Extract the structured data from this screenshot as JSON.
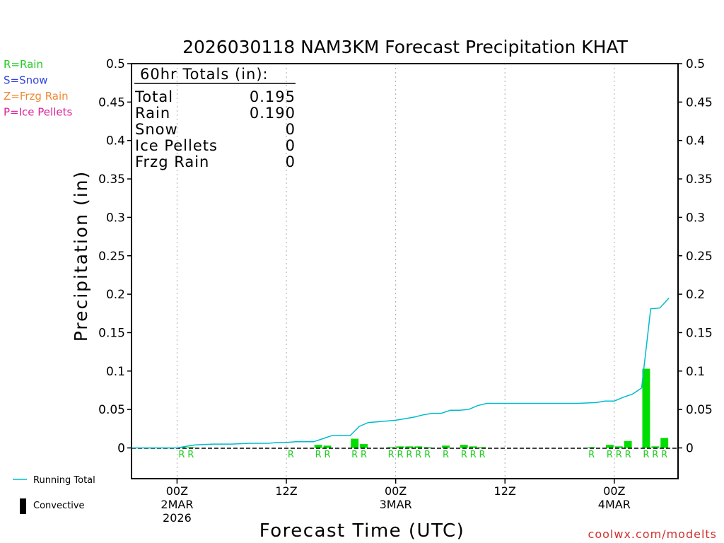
{
  "chart_data": {
    "type": "bar",
    "title": "2026030118 NAM3KM Forecast Precipitation KHAT",
    "xlabel": "Forecast Time (UTC)",
    "ylabel": "Precipitation (in)",
    "ylim": [
      -0.04,
      0.5
    ],
    "xlim_hours": [
      -5,
      55
    ],
    "y_ticks": [
      0,
      0.05,
      0.1,
      0.15,
      0.2,
      0.25,
      0.3,
      0.35,
      0.4,
      0.45,
      0.5
    ],
    "y_tick_labels": [
      "0",
      "0.05",
      "0.1",
      "0.15",
      "0.2",
      "0.25",
      "0.3",
      "0.35",
      "0.4",
      "0.45",
      "0.5"
    ],
    "x_ticks": [
      {
        "hour": 0,
        "lines": [
          "00Z",
          "2MAR",
          "2026"
        ]
      },
      {
        "hour": 12,
        "lines": [
          "12Z"
        ]
      },
      {
        "hour": 24,
        "lines": [
          "00Z",
          "3MAR"
        ]
      },
      {
        "hour": 36,
        "lines": [
          "12Z"
        ]
      },
      {
        "hour": 48,
        "lines": [
          "00Z",
          "4MAR"
        ]
      }
    ],
    "grid": "vertical dotted at tick hours",
    "totals": {
      "header": "60hr Totals (in):",
      "rows": [
        {
          "label": "Total",
          "value": "0.195"
        },
        {
          "label": "Rain",
          "value": "0.190"
        },
        {
          "label": "Snow",
          "value": "0"
        },
        {
          "label": "Ice Pellets",
          "value": "0"
        },
        {
          "label": "Frzg Rain",
          "value": "0"
        }
      ]
    },
    "type_legend": [
      {
        "text": "R=Rain",
        "color": "#22cc22"
      },
      {
        "text": "S=Snow",
        "color": "#3344dd"
      },
      {
        "text": "Z=Frzg Rain",
        "color": "#ee8833"
      },
      {
        "text": "P=Ice Pellets",
        "color": "#dd2299"
      }
    ],
    "series_legend": [
      {
        "name": "Running Total",
        "symbol": "line",
        "color": "#00bbcc"
      },
      {
        "name": "Convective",
        "symbol": "bar",
        "color": "#000000"
      }
    ],
    "bar_color": "#00dd00",
    "running_total_color": "#00bbcc",
    "ptype_color": "#22cc22",
    "series": [
      {
        "name": "Hourly Precipitation",
        "points": [
          {
            "hour": 1,
            "value": 0.001
          },
          {
            "hour": 2,
            "value": 0.001
          },
          {
            "hour": 16,
            "value": 0.004
          },
          {
            "hour": 17,
            "value": 0.003
          },
          {
            "hour": 20,
            "value": 0.012
          },
          {
            "hour": 21,
            "value": 0.005
          },
          {
            "hour": 24,
            "value": 0.001
          },
          {
            "hour": 25,
            "value": 0.002
          },
          {
            "hour": 26,
            "value": 0.002
          },
          {
            "hour": 27,
            "value": 0.002
          },
          {
            "hour": 28,
            "value": 0.001
          },
          {
            "hour": 30,
            "value": 0.003
          },
          {
            "hour": 32,
            "value": 0.004
          },
          {
            "hour": 33,
            "value": 0.002
          },
          {
            "hour": 34,
            "value": 0.001
          },
          {
            "hour": 46,
            "value": 0.001
          },
          {
            "hour": 48,
            "value": 0.004
          },
          {
            "hour": 49,
            "value": 0.002
          },
          {
            "hour": 50,
            "value": 0.009
          },
          {
            "hour": 52,
            "value": 0.103
          },
          {
            "hour": 53,
            "value": 0.002
          },
          {
            "hour": 54,
            "value": 0.013
          }
        ]
      },
      {
        "name": "Running Total",
        "points": [
          {
            "hour": -5,
            "value": 0
          },
          {
            "hour": 0,
            "value": 0
          },
          {
            "hour": 1,
            "value": 0.002
          },
          {
            "hour": 2,
            "value": 0.004
          },
          {
            "hour": 4,
            "value": 0.005
          },
          {
            "hour": 6,
            "value": 0.005
          },
          {
            "hour": 8,
            "value": 0.006
          },
          {
            "hour": 10,
            "value": 0.006
          },
          {
            "hour": 11,
            "value": 0.007
          },
          {
            "hour": 12,
            "value": 0.007
          },
          {
            "hour": 13,
            "value": 0.008
          },
          {
            "hour": 14,
            "value": 0.008
          },
          {
            "hour": 15,
            "value": 0.008
          },
          {
            "hour": 16,
            "value": 0.012
          },
          {
            "hour": 17,
            "value": 0.016
          },
          {
            "hour": 19,
            "value": 0.016
          },
          {
            "hour": 20,
            "value": 0.028
          },
          {
            "hour": 21,
            "value": 0.033
          },
          {
            "hour": 22,
            "value": 0.034
          },
          {
            "hour": 23,
            "value": 0.035
          },
          {
            "hour": 24,
            "value": 0.036
          },
          {
            "hour": 25,
            "value": 0.038
          },
          {
            "hour": 26,
            "value": 0.04
          },
          {
            "hour": 27,
            "value": 0.043
          },
          {
            "hour": 28,
            "value": 0.045
          },
          {
            "hour": 29,
            "value": 0.045
          },
          {
            "hour": 30,
            "value": 0.049
          },
          {
            "hour": 31,
            "value": 0.049
          },
          {
            "hour": 32,
            "value": 0.05
          },
          {
            "hour": 33,
            "value": 0.055
          },
          {
            "hour": 34,
            "value": 0.058
          },
          {
            "hour": 36,
            "value": 0.058
          },
          {
            "hour": 40,
            "value": 0.058
          },
          {
            "hour": 44,
            "value": 0.058
          },
          {
            "hour": 46,
            "value": 0.059
          },
          {
            "hour": 47,
            "value": 0.061
          },
          {
            "hour": 48,
            "value": 0.061
          },
          {
            "hour": 49,
            "value": 0.066
          },
          {
            "hour": 50,
            "value": 0.07
          },
          {
            "hour": 51,
            "value": 0.078
          },
          {
            "hour": 52,
            "value": 0.181
          },
          {
            "hour": 53,
            "value": 0.182
          },
          {
            "hour": 54,
            "value": 0.195
          }
        ]
      }
    ],
    "ptype_labels": [
      {
        "hour": 1,
        "text": "R"
      },
      {
        "hour": 2,
        "text": "R"
      },
      {
        "hour": 13,
        "text": "R"
      },
      {
        "hour": 16,
        "text": "R"
      },
      {
        "hour": 17,
        "text": "R"
      },
      {
        "hour": 20,
        "text": "R"
      },
      {
        "hour": 21,
        "text": "R"
      },
      {
        "hour": 24,
        "text": "R"
      },
      {
        "hour": 25,
        "text": "R"
      },
      {
        "hour": 26,
        "text": "R"
      },
      {
        "hour": 27,
        "text": "R"
      },
      {
        "hour": 28,
        "text": "R"
      },
      {
        "hour": 30,
        "text": "R"
      },
      {
        "hour": 32,
        "text": "R"
      },
      {
        "hour": 33,
        "text": "R"
      },
      {
        "hour": 34,
        "text": "R"
      },
      {
        "hour": 46,
        "text": "R"
      },
      {
        "hour": 48,
        "text": "R"
      },
      {
        "hour": 49,
        "text": "R"
      },
      {
        "hour": 50,
        "text": "R"
      },
      {
        "hour": 52,
        "text": "R"
      },
      {
        "hour": 53,
        "text": "R"
      },
      {
        "hour": 54,
        "text": "R"
      }
    ],
    "credit": "coolwx.com/modelts"
  }
}
